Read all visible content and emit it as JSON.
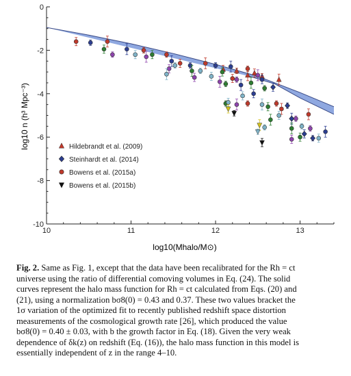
{
  "chart_data": {
    "type": "scatter",
    "title": "",
    "xlabel": "log10(Mhalo/M⊙)",
    "ylabel": "log10 n (h³ Mpc⁻³)",
    "xlim": [
      10,
      13.4
    ],
    "ylim": [
      -10,
      0
    ],
    "x_ticks": [
      10,
      11,
      12,
      13
    ],
    "y_ticks": [
      0,
      -2,
      -4,
      -6,
      -8,
      -10
    ],
    "grid": false,
    "legend_position": "lower-left",
    "legend": [
      {
        "label": "Hildebrandt et al. (2009)",
        "marker": "triangle-up",
        "color": "#c0392b"
      },
      {
        "label": "Steinhardt et al. (2014)",
        "marker": "diamond",
        "color": "#2c3e91"
      },
      {
        "label": "Bowens et al. (2015a)",
        "marker": "circle",
        "color": "#c0392b"
      },
      {
        "label": "Bowens et al. (2015b)",
        "marker": "triangle-down",
        "color": "#111111"
      }
    ],
    "model_band": {
      "color": "#8fa8e0",
      "upper": [
        [
          10.0,
          -0.95
        ],
        [
          10.5,
          -1.3
        ],
        [
          11.0,
          -1.7
        ],
        [
          11.5,
          -2.15
        ],
        [
          12.0,
          -2.65
        ],
        [
          12.5,
          -3.2
        ],
        [
          13.0,
          -3.95
        ],
        [
          13.4,
          -4.6
        ]
      ],
      "lower": [
        [
          12.4,
          -3.2
        ],
        [
          12.7,
          -3.55
        ],
        [
          13.0,
          -4.2
        ],
        [
          13.4,
          -4.95
        ]
      ]
    },
    "series": [
      {
        "name": "Hildebrandt et al. (2009)",
        "marker": "triangle-up",
        "points": [
          [
            12.09,
            -2.88,
            "#c0392b"
          ],
          [
            12.25,
            -2.95,
            "#c0392b"
          ],
          [
            12.38,
            -3.15,
            "#c0392b"
          ],
          [
            12.46,
            -3.05,
            "#c0392b"
          ],
          [
            12.55,
            -3.2,
            "#c0392b"
          ],
          [
            12.75,
            -3.35,
            "#c0392b"
          ]
        ]
      },
      {
        "name": "Steinhardt et al. (2014)",
        "marker": "diamond",
        "points": [
          [
            12.68,
            -3.7,
            "#2c3e91"
          ],
          [
            12.85,
            -4.55,
            "#2c3e91"
          ],
          [
            12.9,
            -5.15,
            "#2c3e91"
          ],
          [
            13.05,
            -5.85,
            "#2c3e91"
          ],
          [
            13.15,
            -6.05,
            "#2c3e91"
          ]
        ]
      },
      {
        "name": "Bowens et al. (2015a)",
        "marker": "circle",
        "points": [
          [
            10.35,
            -1.6,
            "#c0392b"
          ],
          [
            10.52,
            -1.65,
            "#2c3e91"
          ],
          [
            10.72,
            -1.6,
            "#c0392b"
          ],
          [
            10.68,
            -1.95,
            "#2e7d32"
          ],
          [
            10.78,
            -2.2,
            "#8e44ad"
          ],
          [
            10.95,
            -1.95,
            "#2c3e91"
          ],
          [
            11.05,
            -2.2,
            "#7fb3c8"
          ],
          [
            11.15,
            -2.0,
            "#c0392b"
          ],
          [
            11.18,
            -2.3,
            "#8e44ad"
          ],
          [
            11.25,
            -2.2,
            "#2e7d32"
          ],
          [
            11.42,
            -2.2,
            "#c0392b"
          ],
          [
            11.48,
            -2.5,
            "#2c3e91"
          ],
          [
            11.45,
            -2.85,
            "#8e44ad"
          ],
          [
            11.52,
            -2.7,
            "#7fb3c8"
          ],
          [
            11.42,
            -3.1,
            "#7fb3c8"
          ],
          [
            11.58,
            -2.6,
            "#c0392b"
          ],
          [
            11.7,
            -2.7,
            "#2c3e91"
          ],
          [
            11.72,
            -2.95,
            "#2e7d32"
          ],
          [
            11.75,
            -3.25,
            "#8e44ad"
          ],
          [
            11.82,
            -2.95,
            "#7fb3c8"
          ],
          [
            11.88,
            -2.6,
            "#c0392b"
          ],
          [
            11.95,
            -3.2,
            "#7fb3c8"
          ],
          [
            12.0,
            -2.7,
            "#2c3e91"
          ],
          [
            12.05,
            -3.45,
            "#8e44ad"
          ],
          [
            12.08,
            -3.0,
            "#2e7d32"
          ],
          [
            12.12,
            -3.55,
            "#2e7d32"
          ],
          [
            12.18,
            -2.75,
            "#2c3e91"
          ],
          [
            12.2,
            -3.3,
            "#c0392b"
          ],
          [
            12.25,
            -3.35,
            "#8e44ad"
          ],
          [
            12.3,
            -3.6,
            "#2c3e91"
          ],
          [
            12.32,
            -4.1,
            "#7fb3c8"
          ],
          [
            12.38,
            -2.85,
            "#c0392b"
          ],
          [
            12.42,
            -3.5,
            "#2e7d32"
          ],
          [
            12.45,
            -4.0,
            "#2c3e91"
          ],
          [
            12.12,
            -4.45,
            "#2e7d32"
          ],
          [
            12.25,
            -4.5,
            "#8e44ad"
          ],
          [
            12.15,
            -4.4,
            "#7fb3c8"
          ],
          [
            12.38,
            -4.45,
            "#c0392b"
          ],
          [
            12.5,
            -3.15,
            "#8e44ad"
          ],
          [
            12.55,
            -3.35,
            "#2c3e91"
          ],
          [
            12.58,
            -3.75,
            "#2e7d32"
          ],
          [
            12.55,
            -4.5,
            "#7fb3c8"
          ],
          [
            12.62,
            -4.6,
            "#2e7d32"
          ],
          [
            12.72,
            -4.45,
            "#c0392b"
          ],
          [
            12.78,
            -4.7,
            "#c0392b"
          ],
          [
            12.75,
            -5.0,
            "#7fb3c8"
          ],
          [
            12.95,
            -5.15,
            "#8e44ad"
          ],
          [
            12.9,
            -5.6,
            "#2e7d32"
          ],
          [
            12.9,
            -6.1,
            "#8e44ad"
          ],
          [
            13.02,
            -5.5,
            "#7fb3c8"
          ],
          [
            13.1,
            -4.95,
            "#c0392b"
          ],
          [
            13.0,
            -6.0,
            "#2e7d32"
          ],
          [
            13.12,
            -5.6,
            "#8e44ad"
          ],
          [
            13.3,
            -5.75,
            "#2c3e91"
          ],
          [
            13.22,
            -6.05,
            "#7fb3c8"
          ],
          [
            12.58,
            -5.55,
            "#7fb3c8"
          ],
          [
            12.65,
            -5.2,
            "#2e7d32"
          ]
        ]
      },
      {
        "name": "Bowens et al. (2015b)",
        "marker": "triangle-down",
        "points": [
          [
            12.15,
            -4.7,
            "#d4c21e"
          ],
          [
            12.22,
            -4.9,
            "#111111"
          ],
          [
            12.52,
            -5.45,
            "#d4c21e"
          ],
          [
            12.55,
            -6.25,
            "#111111"
          ],
          [
            12.5,
            -5.75,
            "#7fb3c8"
          ]
        ]
      }
    ]
  },
  "caption": {
    "label": "Fig. 2.",
    "lines": [
      "Same as Fig. 1, except that the data have been recalibrated for the Rh = ct",
      "universe using the ratio of differential comoving volumes in Eq. (24). The solid",
      "curves represent the halo mass function for Rh = ct calculated from Eqs. (20) and",
      "(21), using a normalization bσ8(0) = 0.43 and 0.37. These two values bracket the",
      "1σ variation of the optimized fit to recently published redshift space distortion",
      "measurements of the cosmological growth rate [26], which produced the value",
      "bσ8(0) = 0.40 ± 0.03, with b the growth factor in Eq. (18). Given the very weak",
      "dependence of δk(z) on redshift (Eq. (16)), the halo mass function in this model is",
      "essentially independent of z in the range 4–10."
    ]
  },
  "colors": {
    "band": "#8fa8e0",
    "band_edge": "#3a4a86",
    "axis": "#222222",
    "ref": "#2f63b5"
  }
}
